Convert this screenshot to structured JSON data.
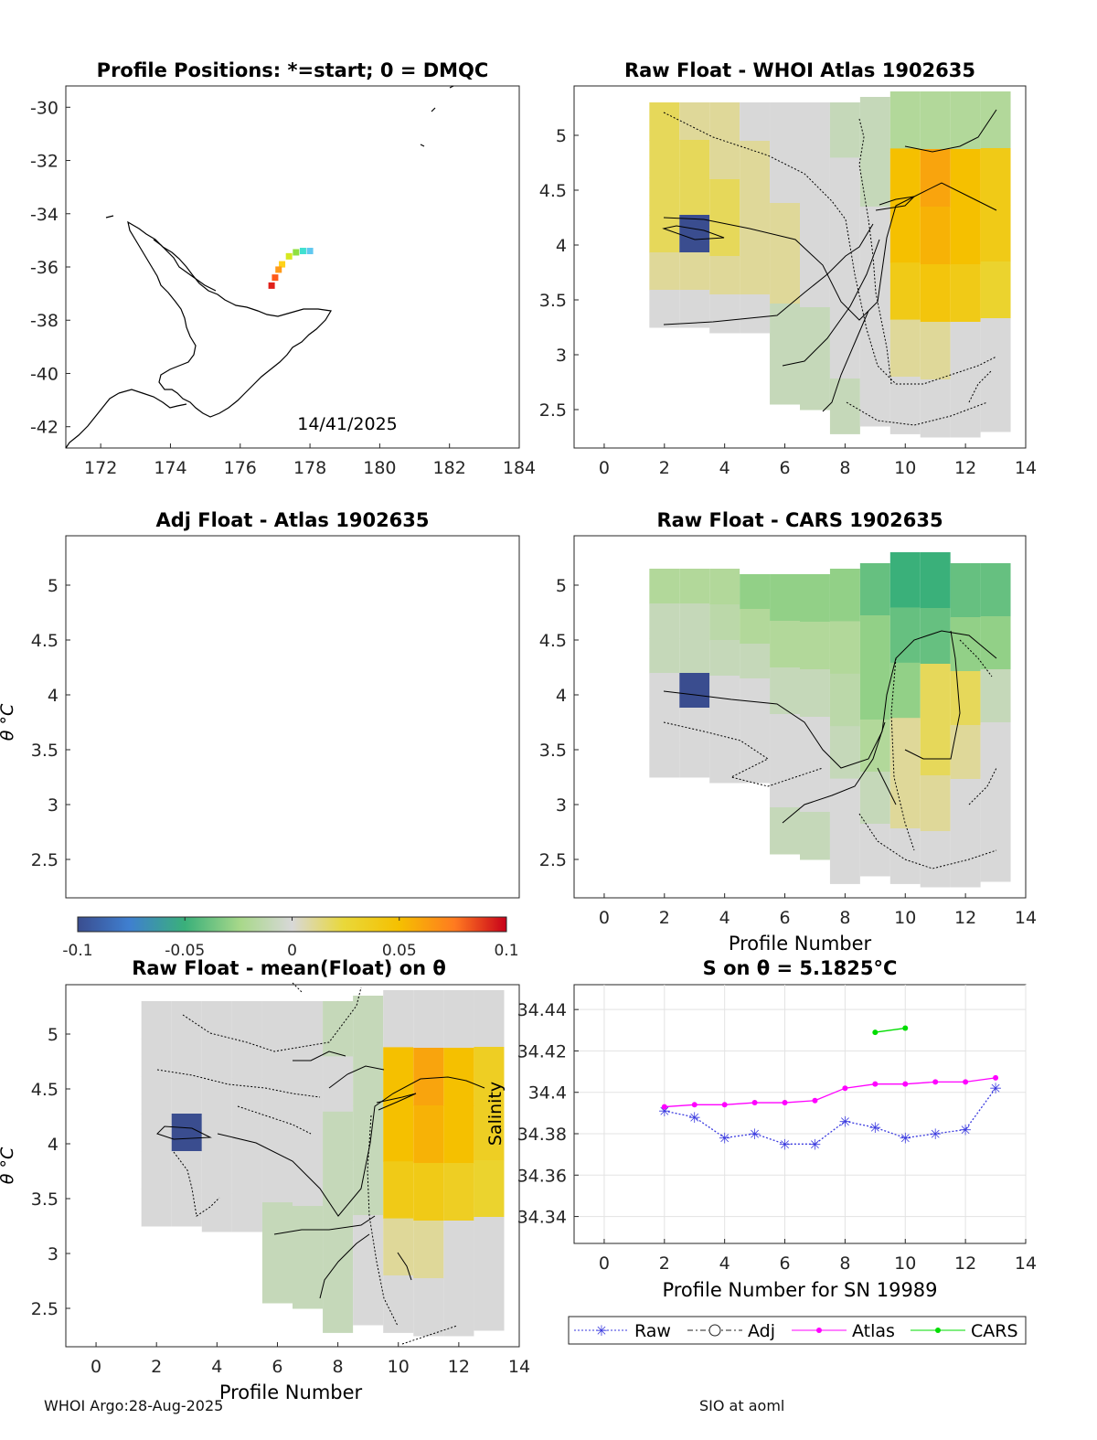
{
  "footer": {
    "left": "WHOI Argo:28-Aug-2025",
    "right": "SIO at aoml"
  },
  "panels": {
    "map": {
      "title": "Profile Positions: *=start; 0 = DMQC",
      "date_label": "14/41/2025",
      "xticks": [
        "172",
        "174",
        "176",
        "178",
        "180",
        "182",
        "184"
      ],
      "yticks": [
        "-30",
        "-32",
        "-34",
        "-36",
        "-38",
        "-40",
        "-42"
      ]
    },
    "whoi": {
      "title": "Raw Float - WHOI Atlas  1902635"
    },
    "adj": {
      "title": "Adj Float - Atlas  1902635",
      "ylabel": "θ °C"
    },
    "cars": {
      "title": "Raw Float - CARS  1902635",
      "xlabel": "Profile Number"
    },
    "mean": {
      "title": "Raw Float - mean(Float) on θ",
      "ylabel": "θ °C",
      "xlabel": "Profile Number"
    },
    "sal": {
      "title": "S on θ = 5.1825°C",
      "xlabel": "Profile Number for SN 19989",
      "ylabel": "Salinity"
    }
  },
  "colorbar": {
    "ticks": [
      "-0.1",
      "-0.05",
      "0",
      "0.05",
      "0.1"
    ],
    "range": [
      -0.1,
      0.1
    ]
  },
  "legend": {
    "items": [
      "Raw",
      "Adj",
      "Atlas",
      "CARS"
    ]
  },
  "chart_data": [
    {
      "type": "scatter",
      "panel": "map",
      "title": "Profile Positions: *=start; 0 = DMQC",
      "xlim": [
        171,
        184
      ],
      "ylim": [
        -42.8,
        -29.2
      ],
      "x": [
        178.0,
        177.8,
        177.6,
        177.4,
        177.2,
        177.1,
        177.0,
        176.9
      ],
      "y": [
        -35.4,
        -35.4,
        -35.45,
        -35.6,
        -35.9,
        -36.1,
        -36.4,
        -36.7
      ],
      "colors": [
        "#60c8f0",
        "#40e0d0",
        "#8fe040",
        "#d6e820",
        "#ffd21a",
        "#ff9a1a",
        "#ff5a1a",
        "#e0201a"
      ]
    },
    {
      "type": "heatmap",
      "panel": "whoi",
      "xlim": [
        -1,
        14
      ],
      "ylim": [
        2.15,
        5.45
      ],
      "xticks": [
        "0",
        "2",
        "4",
        "6",
        "8",
        "10",
        "12",
        "14"
      ],
      "yticks": [
        "2.5",
        "3",
        "3.5",
        "4",
        "4.5",
        "5"
      ],
      "columns": [
        2,
        3,
        4,
        5,
        6,
        7,
        8,
        9,
        10,
        11,
        12,
        13
      ],
      "theta_bottom": [
        3.25,
        3.25,
        3.2,
        3.2,
        2.55,
        2.5,
        2.28,
        2.35,
        2.28,
        2.25,
        2.25,
        2.3
      ],
      "theta_top": [
        5.3,
        5.3,
        5.3,
        5.3,
        5.3,
        5.3,
        5.3,
        5.35,
        5.4,
        5.4,
        5.4,
        5.4
      ],
      "anomaly": [
        [
          0.02,
          0.01,
          0.01,
          0.0,
          0.0,
          0.0,
          -0.01,
          -0.01,
          -0.02,
          -0.02,
          -0.02,
          -0.02
        ],
        [
          0.02,
          0.02,
          0.01,
          0.01,
          0.0,
          0.0,
          0.0,
          -0.01,
          0.05,
          0.06,
          0.05,
          0.04
        ],
        [
          0.02,
          0.02,
          0.02,
          0.01,
          0.01,
          0.0,
          0.0,
          0.0,
          0.05,
          0.055,
          0.05,
          0.04
        ],
        [
          0.02,
          -0.1,
          0.02,
          0.01,
          0.01,
          0.0,
          0.0,
          0.0,
          0.04,
          0.045,
          0.04,
          0.03
        ],
        [
          0.01,
          0.01,
          0.01,
          0.01,
          -0.01,
          -0.01,
          0.0,
          0.0,
          0.01,
          0.01,
          0.0,
          0.0
        ],
        [
          0.0,
          0.0,
          0.0,
          0.0,
          -0.01,
          -0.01,
          -0.01,
          0.0,
          0.0,
          0.0,
          0.0,
          0.0
        ]
      ]
    },
    {
      "type": "heatmap",
      "panel": "adj",
      "xlim": [
        -1,
        14
      ],
      "ylim": [
        2.15,
        5.45
      ],
      "yticks": [
        "2.5",
        "3",
        "3.5",
        "4",
        "4.5",
        "5"
      ],
      "note": "empty"
    },
    {
      "type": "heatmap",
      "panel": "cars",
      "xlim": [
        -1,
        14
      ],
      "ylim": [
        2.15,
        5.45
      ],
      "xticks": [
        "0",
        "2",
        "4",
        "6",
        "8",
        "10",
        "12",
        "14"
      ],
      "yticks": [
        "2.5",
        "3",
        "3.5",
        "4",
        "4.5",
        "5"
      ],
      "columns": [
        2,
        3,
        4,
        5,
        6,
        7,
        8,
        9,
        10,
        11,
        12,
        13
      ],
      "theta_bottom": [
        3.25,
        3.25,
        3.2,
        3.2,
        2.55,
        2.5,
        2.28,
        2.35,
        2.28,
        2.25,
        2.25,
        2.3
      ],
      "theta_top": [
        5.15,
        5.15,
        5.15,
        5.1,
        5.1,
        5.1,
        5.15,
        5.2,
        5.3,
        5.3,
        5.2,
        5.2
      ],
      "anomaly": [
        [
          -0.02,
          -0.02,
          -0.02,
          -0.03,
          -0.03,
          -0.03,
          -0.03,
          -0.04,
          -0.05,
          -0.05,
          -0.04,
          -0.04
        ],
        [
          -0.01,
          -0.01,
          -0.015,
          -0.02,
          -0.02,
          -0.02,
          -0.02,
          -0.03,
          -0.04,
          -0.04,
          -0.03,
          -0.03
        ],
        [
          -0.01,
          -0.01,
          -0.01,
          -0.01,
          -0.01,
          -0.01,
          -0.015,
          -0.03,
          -0.03,
          0.02,
          0.02,
          -0.01
        ],
        [
          0.0,
          -0.1,
          0.0,
          0.0,
          0.0,
          0.0,
          -0.01,
          -0.02,
          0.01,
          0.02,
          0.01,
          0.0
        ],
        [
          0.0,
          0.0,
          0.0,
          0.0,
          0.0,
          0.0,
          0.0,
          -0.01,
          0.01,
          0.01,
          0.0,
          0.0
        ],
        [
          0.0,
          0.0,
          0.0,
          0.0,
          -0.01,
          -0.01,
          0.0,
          0.0,
          0.0,
          0.0,
          0.0,
          0.0
        ]
      ]
    },
    {
      "type": "heatmap",
      "panel": "mean",
      "title": "Raw Float - mean(Float) on θ",
      "xlim": [
        -1,
        14
      ],
      "ylim": [
        2.15,
        5.45
      ],
      "xticks": [
        "0",
        "2",
        "4",
        "6",
        "8",
        "10",
        "12",
        "14"
      ],
      "yticks": [
        "2.5",
        "3",
        "3.5",
        "4",
        "4.5",
        "5"
      ],
      "columns": [
        2,
        3,
        4,
        5,
        6,
        7,
        8,
        9,
        10,
        11,
        12,
        13
      ],
      "theta_bottom": [
        3.25,
        3.25,
        3.2,
        3.2,
        2.55,
        2.5,
        2.28,
        2.35,
        2.28,
        2.25,
        2.25,
        2.3
      ],
      "theta_top": [
        5.3,
        5.3,
        5.3,
        5.3,
        5.3,
        5.3,
        5.3,
        5.35,
        5.4,
        5.4,
        5.4,
        5.4
      ],
      "anomaly": [
        [
          0.0,
          0.0,
          0.0,
          0.0,
          0.0,
          0.0,
          -0.01,
          -0.01,
          0.0,
          0.0,
          0.0,
          0.0
        ],
        [
          0.0,
          0.0,
          0.0,
          0.0,
          0.0,
          0.0,
          0.0,
          -0.01,
          0.05,
          0.06,
          0.05,
          0.035
        ],
        [
          0.0,
          0.0,
          0.0,
          0.0,
          0.0,
          0.0,
          -0.01,
          -0.01,
          0.05,
          0.055,
          0.05,
          0.035
        ],
        [
          0.0,
          -0.1,
          0.0,
          0.0,
          0.0,
          0.0,
          -0.01,
          -0.01,
          0.04,
          0.04,
          0.035,
          0.03
        ],
        [
          0.0,
          0.0,
          0.0,
          0.0,
          -0.01,
          -0.01,
          -0.01,
          0.0,
          0.01,
          0.01,
          0.0,
          0.0
        ],
        [
          0.0,
          0.0,
          0.0,
          0.0,
          -0.01,
          -0.01,
          -0.01,
          0.0,
          0.0,
          0.0,
          0.0,
          0.0
        ]
      ]
    },
    {
      "type": "line",
      "panel": "sal",
      "title": "S on θ = 5.1825°C",
      "xlabel": "Profile Number for SN 19989",
      "ylabel": "Salinity",
      "xlim": [
        -1,
        14
      ],
      "ylim": [
        34.327,
        34.452
      ],
      "xticks": [
        "0",
        "2",
        "4",
        "6",
        "8",
        "10",
        "12",
        "14"
      ],
      "yticks": [
        "34.34",
        "34.36",
        "34.38",
        "34.4",
        "34.42",
        "34.44"
      ],
      "series": [
        {
          "name": "Raw",
          "color": "#3a3adf",
          "x": [
            2,
            3,
            4,
            5,
            6,
            7,
            8,
            9,
            10,
            11,
            12,
            13
          ],
          "values": [
            34.391,
            34.388,
            34.378,
            34.38,
            34.375,
            34.375,
            34.386,
            34.383,
            34.378,
            34.38,
            34.382,
            34.402
          ]
        },
        {
          "name": "Adj",
          "color": "#222222",
          "x": [],
          "values": []
        },
        {
          "name": "Atlas",
          "color": "#ff00ff",
          "x": [
            2,
            3,
            4,
            5,
            6,
            7,
            8,
            9,
            10,
            11,
            12,
            13
          ],
          "values": [
            34.393,
            34.394,
            34.394,
            34.395,
            34.395,
            34.396,
            34.402,
            34.404,
            34.404,
            34.405,
            34.405,
            34.407
          ]
        },
        {
          "name": "CARS",
          "color": "#00dd00",
          "x": [
            9,
            10
          ],
          "values": [
            34.429,
            34.431
          ]
        }
      ]
    }
  ]
}
